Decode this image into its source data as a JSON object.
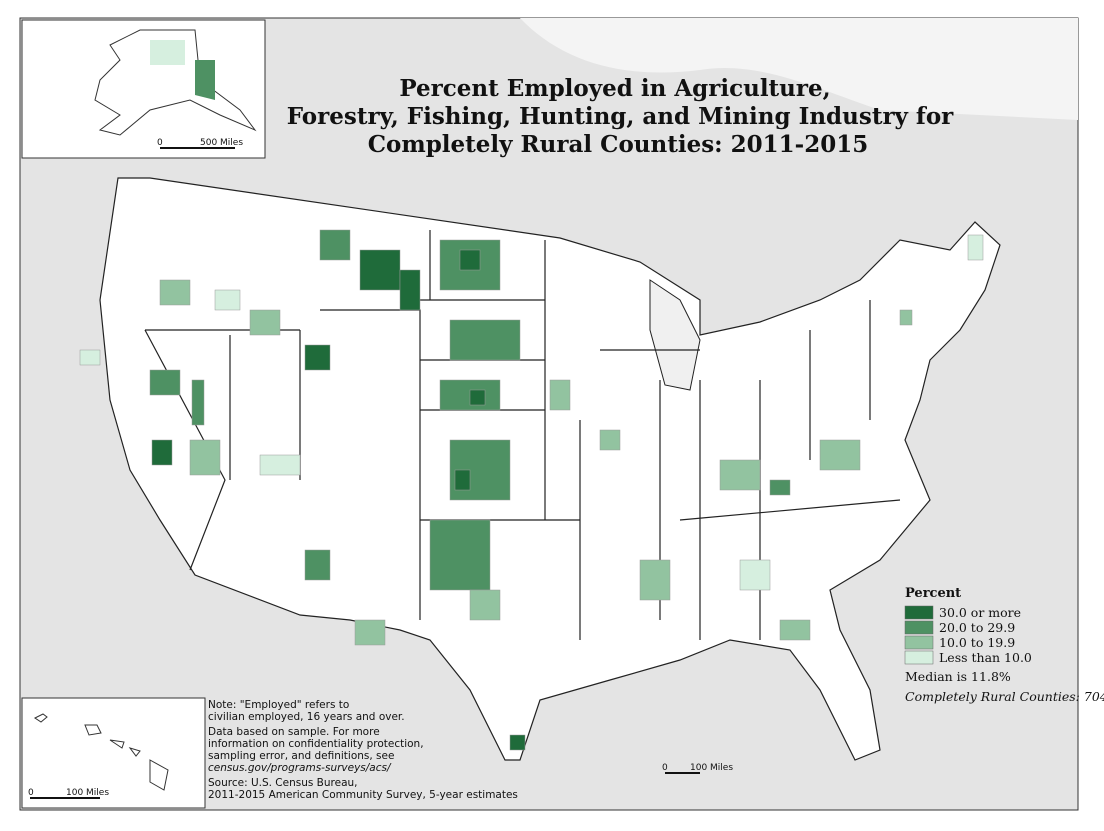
{
  "title": [
    "Percent Employed in Agriculture,",
    "Forestry, Fishing, Hunting, and Mining Industry for",
    "Completely Rural Counties: 2011-2015"
  ],
  "legend": {
    "title": "Percent",
    "items": [
      {
        "label": "30.0 or more",
        "color": "#1f6b3a"
      },
      {
        "label": "20.0 to 29.9",
        "color": "#4e9163"
      },
      {
        "label": "10.0 to 19.9",
        "color": "#92c3a0"
      },
      {
        "label": "Less than 10.0",
        "color": "#d6efdf"
      }
    ],
    "median": "Median is 11.8%",
    "count": "Completely Rural Counties: 704"
  },
  "notes": [
    "Note: \"Employed\" refers to",
    "civilian employed, 16 years and over.",
    "Data based on sample. For more",
    "information on confidentiality protection,",
    "sampling error, and definitions, see",
    "census.gov/programs-surveys/acs/",
    "Source: U.S. Census Bureau,",
    "2011-2015 American Community Survey, 5-year estimates"
  ],
  "scales": {
    "alaska": [
      "0",
      "500 Miles"
    ],
    "hawaii": [
      "0",
      "100 Miles"
    ],
    "main": [
      "0",
      "100 Miles"
    ]
  }
}
